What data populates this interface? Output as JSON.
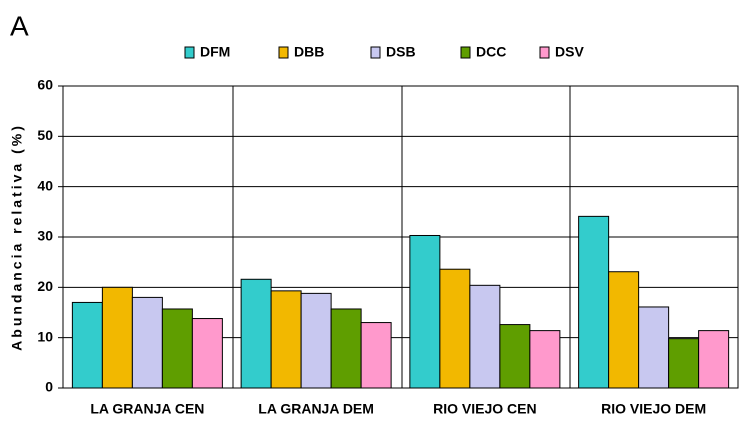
{
  "panel_label": "A",
  "chart_data": {
    "type": "bar",
    "y_label": "Abundancia relativa (%)",
    "categories": [
      "LA GRANJA CEN",
      "LA GRANJA DEM",
      "RIO VIEJO CEN",
      "RIO VIEJO DEM"
    ],
    "series": [
      {
        "name": "DFM",
        "color": "#33cccc",
        "values": [
          17,
          21.6,
          30.3,
          34.1
        ]
      },
      {
        "name": "DBB",
        "color": "#f2b800",
        "values": [
          20,
          19.3,
          23.6,
          23.1
        ]
      },
      {
        "name": "DSB",
        "color": "#c8c8f0",
        "values": [
          18,
          18.8,
          20.4,
          16.1
        ]
      },
      {
        "name": "DCC",
        "color": "#5f9e00",
        "values": [
          15.7,
          15.7,
          12.6,
          9.8
        ]
      },
      {
        "name": "DSV",
        "color": "#ff99cc",
        "values": [
          13.8,
          13,
          11.4,
          11.4
        ]
      }
    ],
    "ylim": [
      0,
      60
    ],
    "yticks": [
      0,
      10,
      20,
      30,
      40,
      50,
      60
    ],
    "grid": true,
    "legend": "top"
  }
}
